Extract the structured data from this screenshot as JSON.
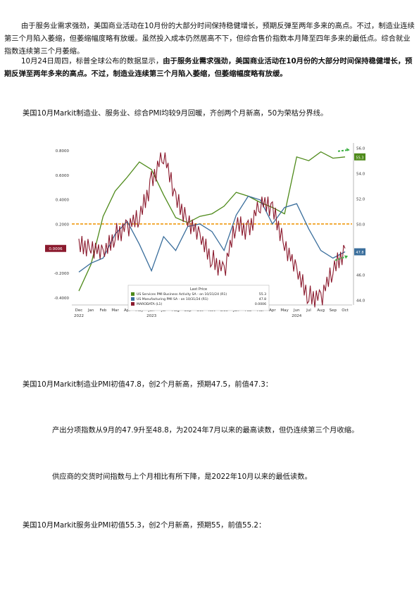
{
  "paragraphs": {
    "p1": "由于服务业需求强劲，美国商业活动在10月份的大部分时间保持稳健增长，预期反弹至两年多来的高点。不过，制造业连续第三个月陷入萎缩，但萎缩幅度略有放缓。虽然投入成本仍然居高不下，但综合售价指数本月降至四年多来的最低点。综合就业指数连续第三个月萎缩。",
    "p2_lead": "10月24日周四，标普全球公布的数据显示，",
    "p2_bold": "由于服务业需求强劲，美国商业活动在10月份的大部分时间保持稳健增长，预期反弹至两年多来的高点。不过，制造业连续第三个月陷入萎缩，但萎缩幅度略有放缓。",
    "p3": "美国10月Markit制造业、服务业、综合PMI均较9月回暖，齐创两个月新高，50为荣枯分界线。",
    "p4": "美国10月Markit制造业PMI初值47.8，创2个月新高，预期47.5，前值47.3：",
    "p5": "产出分项指数从9月的47.9升至48.8，为2024年7月以来的最高读数，但仍连续第三个月收缩。",
    "p6": "供应商的交货时间指数与上个月相比有所下降，是2022年10月以来的最低读数。",
    "p7": "美国10月Markit服务业PMI初值55.3，创2个月新高，预期55，前值55.2："
  },
  "chart_data": {
    "type": "line",
    "x": [
      "Dec",
      "Jan",
      "Feb",
      "Mar",
      "Apr",
      "May",
      "Jun",
      "Jul",
      "Aug",
      "Sep",
      "Oct",
      "Nov",
      "Dec",
      "Jan",
      "Feb",
      "Mar",
      "Apr",
      "May",
      "Jun",
      "Jul",
      "Aug",
      "Sep",
      "Oct"
    ],
    "year_labels": [
      {
        "text": "2022",
        "at": 0
      },
      {
        "text": "2023",
        "at": 6
      },
      {
        "text": "2024",
        "at": 18
      }
    ],
    "left_axis": {
      "ticks": [
        "0.8000",
        "0.6000",
        "0.4000",
        "0.2000",
        "-0.2000",
        "-0.4000"
      ],
      "values": [
        0.8,
        0.6,
        0.4,
        0.2,
        -0.2,
        -0.4
      ],
      "min": -0.46,
      "max": 0.86
    },
    "right_axis": {
      "ticks": [
        "56.0",
        "54.0",
        "52.0",
        "50.0",
        "48.0",
        "46.0",
        "44.0"
      ],
      "values": [
        56,
        54,
        52,
        50,
        48,
        46,
        44
      ],
      "min": 43.6,
      "max": 56.4
    },
    "threshold": 50,
    "tags": {
      "left": "0.0006",
      "right_services": "55.3",
      "right_mfg": "47.8"
    },
    "series": [
      {
        "name": "US Services PMI Business Activity SA - on 10/31/24 (R1)",
        "last": "55.3",
        "color": "#4e8a1a",
        "axis": "right",
        "values": [
          44.7,
          46.8,
          50.6,
          52.6,
          53.7,
          54.9,
          54.3,
          52.3,
          50.5,
          50.1,
          50.6,
          50.8,
          51.4,
          52.5,
          52.2,
          51.7,
          51.3,
          50.8,
          55.3,
          55.0,
          55.7,
          55.2,
          55.3
        ]
      },
      {
        "name": "US Manufacturing PMI SA - on 10/31/24 (R1)",
        "last": "47.8",
        "color": "#3a6e9c",
        "axis": "right",
        "values": [
          46.2,
          46.9,
          47.3,
          49.2,
          50.2,
          48.4,
          46.3,
          49.0,
          47.9,
          49.8,
          50.0,
          49.4,
          47.9,
          50.7,
          52.2,
          51.9,
          50.0,
          51.3,
          51.6,
          49.6,
          47.9,
          47.3,
          47.8
        ]
      },
      {
        "name": "MARODATA (L1)",
        "last": "0.0006",
        "color": "#8b1a2e",
        "axis": "left",
        "values": [
          0.02,
          0.03,
          -0.06,
          0.12,
          0.18,
          0.25,
          0.55,
          0.78,
          0.4,
          0.25,
          0.08,
          -0.08,
          -0.18,
          0.2,
          0.15,
          0.38,
          0.32,
          0.05,
          -0.2,
          -0.38,
          -0.4,
          -0.18,
          0.0006
        ]
      }
    ],
    "legend_title": "Last Price",
    "legend_position": "bottom-center",
    "grid": false
  }
}
